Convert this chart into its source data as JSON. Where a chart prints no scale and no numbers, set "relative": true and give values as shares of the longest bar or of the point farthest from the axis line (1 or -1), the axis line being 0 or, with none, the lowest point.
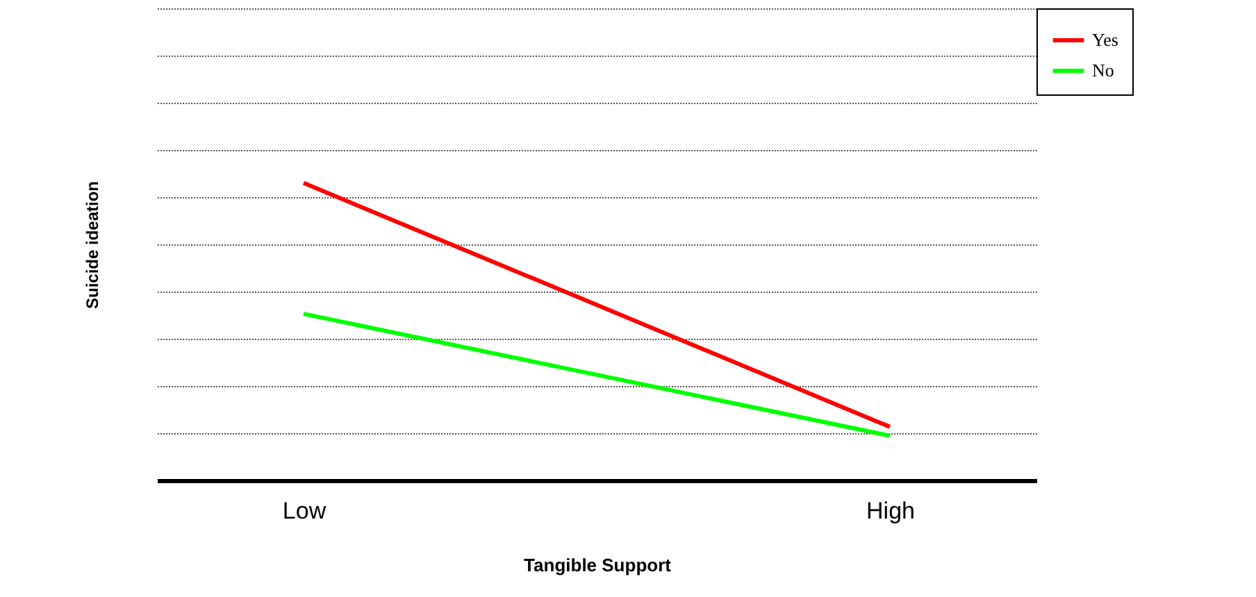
{
  "chart_data": {
    "type": "line",
    "relative": true,
    "xlabel": "Tangible Support",
    "ylabel": "Suicide ideation",
    "categories": [
      "Low",
      "High"
    ],
    "series": [
      {
        "name": "Yes",
        "color": "#ff0000",
        "values": [
          1,
          0.18
        ]
      },
      {
        "name": "No",
        "color": "#00ff00",
        "values": [
          0.56,
          0.15
        ]
      }
    ],
    "grid": "y",
    "legend": "right",
    "marker": "none",
    "line_style": "solid"
  }
}
